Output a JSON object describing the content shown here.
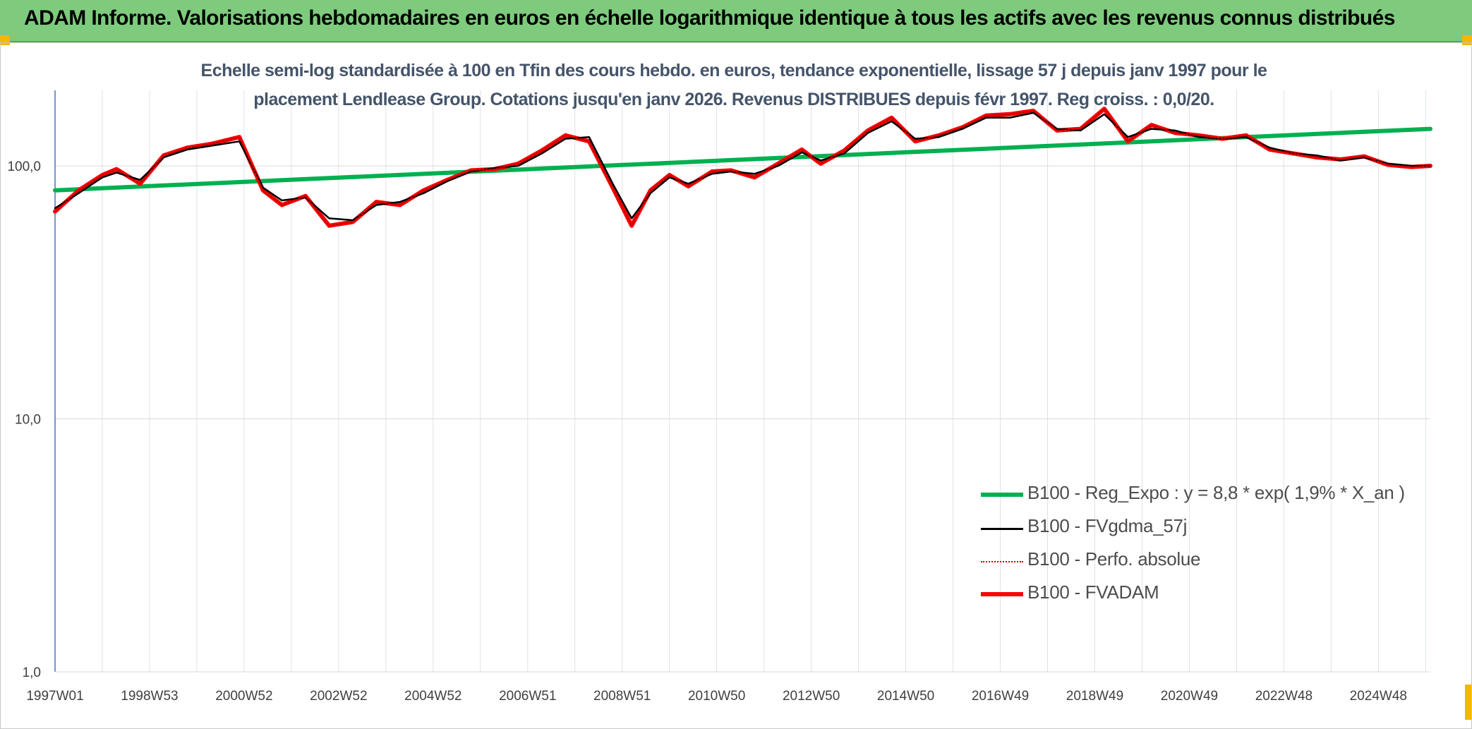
{
  "banner": {
    "title": "ADAM Informe. Valorisations hebdomadaires en euros en échelle logarithmique identique à tous les actifs avec les revenus connus distribués",
    "color": "#7ecb7e"
  },
  "chart_data": {
    "type": "line",
    "title_line1": "Echelle semi-log standardisée à 100 en Tfin des cours hebdo. en euros, tendance exponentielle, lissage 57 j depuis janv 1997 pour le",
    "title_line2": "placement Lendlease Group. Cotations jusqu'en janv 2026. Revenus DISTRIBUES depuis févr 1997. Reg croiss. : 0,0/20.",
    "y_scale": "log",
    "ylim": [
      1,
      200
    ],
    "y_ticks": [
      {
        "value": 1,
        "label": "1,0"
      },
      {
        "value": 10,
        "label": "10,0"
      },
      {
        "value": 100,
        "label": "100,0"
      }
    ],
    "xlim": [
      1997.0,
      2026.1
    ],
    "x_ticks": [
      {
        "value": 1997.0,
        "label": "1997W01"
      },
      {
        "value": 1999.0,
        "label": "1998W53"
      },
      {
        "value": 2001.0,
        "label": "2000W52"
      },
      {
        "value": 2003.0,
        "label": "2002W52"
      },
      {
        "value": 2005.0,
        "label": "2004W52"
      },
      {
        "value": 2007.0,
        "label": "2006W51"
      },
      {
        "value": 2009.0,
        "label": "2008W51"
      },
      {
        "value": 2011.0,
        "label": "2010W50"
      },
      {
        "value": 2013.0,
        "label": "2012W50"
      },
      {
        "value": 2015.0,
        "label": "2014W50"
      },
      {
        "value": 2017.0,
        "label": "2016W49"
      },
      {
        "value": 2019.0,
        "label": "2018W49"
      },
      {
        "value": 2021.0,
        "label": "2020W49"
      },
      {
        "value": 2023.0,
        "label": "2022W48"
      },
      {
        "value": 2025.0,
        "label": "2024W48"
      }
    ],
    "grid": true,
    "legend_position": "lower-right",
    "series": [
      {
        "name": "B100 - Reg_Expo : y = 8,8 * exp( 1,9% *  X_an )",
        "color": "#00b050",
        "style": "solid-thick",
        "x": [
          1997.0,
          2026.1
        ],
        "y": [
          80,
          140
        ]
      },
      {
        "name": "B100 - FVgdma_57j",
        "color": "#000000",
        "style": "solid-thin",
        "x": [
          1997.0,
          1997.5,
          1998.0,
          1998.3,
          1998.8,
          1999.3,
          1999.8,
          2000.3,
          2000.9,
          2001.4,
          2001.8,
          2002.3,
          2002.8,
          2003.3,
          2003.8,
          2004.3,
          2004.8,
          2005.3,
          2005.8,
          2006.3,
          2006.8,
          2007.3,
          2007.8,
          2008.3,
          2008.8,
          2009.2,
          2009.6,
          2010.0,
          2010.4,
          2010.9,
          2011.3,
          2011.8,
          2012.3,
          2012.8,
          2013.2,
          2013.7,
          2014.2,
          2014.7,
          2015.2,
          2015.7,
          2016.2,
          2016.7,
          2017.2,
          2017.7,
          2018.2,
          2018.7,
          2019.2,
          2019.7,
          2020.2,
          2020.7,
          2021.2,
          2021.7,
          2022.2,
          2022.7,
          2023.2,
          2023.7,
          2024.2,
          2024.7,
          2025.2,
          2025.7,
          2026.1
        ],
        "y": [
          68,
          78,
          90,
          94,
          88,
          108,
          116,
          120,
          125,
          82,
          73,
          75,
          62,
          61,
          70,
          72,
          78,
          87,
          95,
          98,
          100,
          112,
          128,
          130,
          85,
          62,
          78,
          90,
          85,
          93,
          95,
          93,
          100,
          113,
          105,
          112,
          135,
          150,
          128,
          130,
          140,
          155,
          155,
          162,
          140,
          138,
          160,
          130,
          140,
          138,
          130,
          128,
          130,
          118,
          112,
          110,
          105,
          108,
          102,
          100,
          100
        ]
      },
      {
        "name": "B100 - Perfo. absolue",
        "color": "#c00000",
        "style": "dotted",
        "x": [
          1997.0,
          1997.5,
          1998.0,
          1998.3,
          1998.8,
          1999.3,
          1999.8,
          2000.3,
          2000.9,
          2001.4,
          2001.8,
          2002.3,
          2002.8,
          2003.3,
          2003.8,
          2004.3,
          2004.8,
          2005.3,
          2005.8,
          2006.3,
          2006.8,
          2007.3,
          2007.8,
          2008.3,
          2008.8,
          2009.2,
          2009.6,
          2010.0,
          2010.4,
          2010.9,
          2011.3,
          2011.8,
          2012.3,
          2012.8,
          2013.2,
          2013.7,
          2014.2,
          2014.7,
          2015.2,
          2015.7,
          2016.2,
          2016.7,
          2017.2,
          2017.7,
          2018.2,
          2018.7,
          2019.2,
          2019.7,
          2020.2,
          2020.7,
          2021.2,
          2021.7,
          2022.2,
          2022.7,
          2023.2,
          2023.7,
          2024.2,
          2024.7,
          2025.2,
          2025.7,
          2026.1
        ],
        "y": [
          66,
          80,
          92,
          97,
          85,
          110,
          118,
          122,
          130,
          80,
          70,
          76,
          58,
          60,
          72,
          70,
          80,
          88,
          96,
          97,
          102,
          115,
          132,
          125,
          82,
          58,
          80,
          92,
          83,
          95,
          96,
          90,
          102,
          116,
          102,
          115,
          138,
          155,
          125,
          132,
          142,
          158,
          160,
          165,
          138,
          140,
          168,
          125,
          145,
          135,
          132,
          128,
          132,
          116,
          112,
          108,
          106,
          109,
          101,
          99,
          100
        ]
      },
      {
        "name": "B100 - FVADAM",
        "color": "#ff0000",
        "style": "solid-thick",
        "x": [
          1997.0,
          1997.5,
          1998.0,
          1998.3,
          1998.8,
          1999.3,
          1999.8,
          2000.3,
          2000.9,
          2001.4,
          2001.8,
          2002.3,
          2002.8,
          2003.3,
          2003.8,
          2004.3,
          2004.8,
          2005.3,
          2005.8,
          2006.3,
          2006.8,
          2007.3,
          2007.8,
          2008.3,
          2008.8,
          2009.2,
          2009.6,
          2010.0,
          2010.4,
          2010.9,
          2011.3,
          2011.8,
          2012.3,
          2012.8,
          2013.2,
          2013.7,
          2014.2,
          2014.7,
          2015.2,
          2015.7,
          2016.2,
          2016.7,
          2017.2,
          2017.7,
          2018.2,
          2018.7,
          2019.2,
          2019.7,
          2020.2,
          2020.7,
          2021.2,
          2021.7,
          2022.2,
          2022.7,
          2023.2,
          2023.7,
          2024.2,
          2024.7,
          2025.2,
          2025.7,
          2026.1
        ],
        "y": [
          66,
          80,
          92,
          97,
          85,
          110,
          118,
          122,
          130,
          80,
          70,
          76,
          58,
          60,
          72,
          70,
          80,
          88,
          96,
          97,
          102,
          115,
          132,
          125,
          82,
          58,
          80,
          92,
          83,
          95,
          96,
          90,
          102,
          116,
          102,
          115,
          138,
          155,
          125,
          132,
          142,
          158,
          160,
          165,
          138,
          140,
          168,
          125,
          145,
          135,
          132,
          128,
          132,
          116,
          112,
          108,
          106,
          109,
          101,
          99,
          100
        ]
      }
    ]
  }
}
